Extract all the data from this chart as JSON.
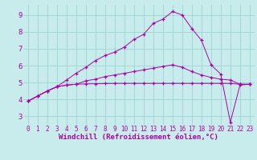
{
  "xlabel": "Windchill (Refroidissement éolien,°C)",
  "background_color": "#c8ecec",
  "line_color": "#aa00aa",
  "xlim": [
    -0.5,
    23.5
  ],
  "ylim": [
    2.5,
    9.6
  ],
  "yticks": [
    3,
    4,
    5,
    6,
    7,
    8,
    9
  ],
  "xticks": [
    0,
    1,
    2,
    3,
    4,
    5,
    6,
    7,
    8,
    9,
    10,
    11,
    12,
    13,
    14,
    15,
    16,
    17,
    18,
    19,
    20,
    21,
    22,
    23
  ],
  "series1_x": [
    0,
    1,
    2,
    3,
    4,
    5,
    6,
    7,
    8,
    9,
    10,
    11,
    12,
    13,
    14,
    15,
    16,
    17,
    18,
    19,
    20,
    21,
    22,
    23
  ],
  "series1_y": [
    3.9,
    4.2,
    4.5,
    4.75,
    4.85,
    4.9,
    4.92,
    4.93,
    4.94,
    4.95,
    4.95,
    4.95,
    4.95,
    4.95,
    4.95,
    4.95,
    4.95,
    4.95,
    4.95,
    4.95,
    4.95,
    4.95,
    4.9,
    4.9
  ],
  "series2_x": [
    0,
    1,
    2,
    3,
    4,
    5,
    6,
    7,
    8,
    9,
    10,
    11,
    12,
    13,
    14,
    15,
    16,
    17,
    18,
    19,
    20,
    21,
    22,
    23
  ],
  "series2_y": [
    3.9,
    4.2,
    4.5,
    4.75,
    4.85,
    4.9,
    5.1,
    5.2,
    5.35,
    5.45,
    5.55,
    5.65,
    5.75,
    5.85,
    5.95,
    6.05,
    5.9,
    5.65,
    5.45,
    5.3,
    5.2,
    5.15,
    4.9,
    4.9
  ],
  "series3_x": [
    0,
    1,
    2,
    3,
    4,
    5,
    6,
    7,
    8,
    9,
    10,
    11,
    12,
    13,
    14,
    15,
    16,
    17,
    18,
    19,
    20,
    21,
    22,
    23
  ],
  "series3_y": [
    3.9,
    4.2,
    4.5,
    4.75,
    5.15,
    5.55,
    5.9,
    6.3,
    6.6,
    6.8,
    7.1,
    7.55,
    7.85,
    8.5,
    8.75,
    9.2,
    9.0,
    8.2,
    7.5,
    6.05,
    5.5,
    2.65,
    4.85,
    4.9
  ],
  "grid_color": "#9dd4d4",
  "tick_fontsize": 5.5,
  "xlabel_fontsize": 6.5
}
